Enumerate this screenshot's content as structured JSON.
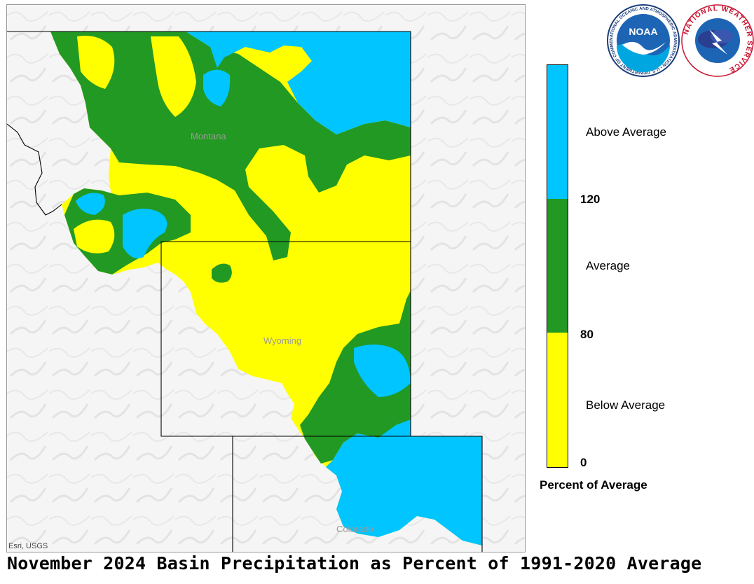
{
  "title": "November 2024 Basin Precipitation as Percent of 1991-2020 Average",
  "attribution": "Esri, USGS",
  "places": {
    "montana": "Montana",
    "wyoming": "Wyoming",
    "colorado": "Colorado"
  },
  "legend": {
    "title": "Percent of Average",
    "categories": [
      {
        "label": "Above Average",
        "color": "#00c5ff"
      },
      {
        "label": "Average",
        "color": "#229922"
      },
      {
        "label": "Below Average",
        "color": "#ffff00"
      }
    ],
    "ticks": [
      "120",
      "80",
      "0"
    ]
  },
  "logos": {
    "noaa_text": "NOAA",
    "noaa_ring": "NATIONAL OCEANIC AND ATMOSPHERIC ADMINISTRATION • U.S. DEPARTMENT OF COMMERCE •",
    "nws_ring": "NATIONAL WEATHER SERVICE"
  },
  "colors": {
    "above": "#00c5ff",
    "average": "#229922",
    "below": "#ffff00",
    "terrain": "#f2f2f2",
    "border": "#000000"
  }
}
